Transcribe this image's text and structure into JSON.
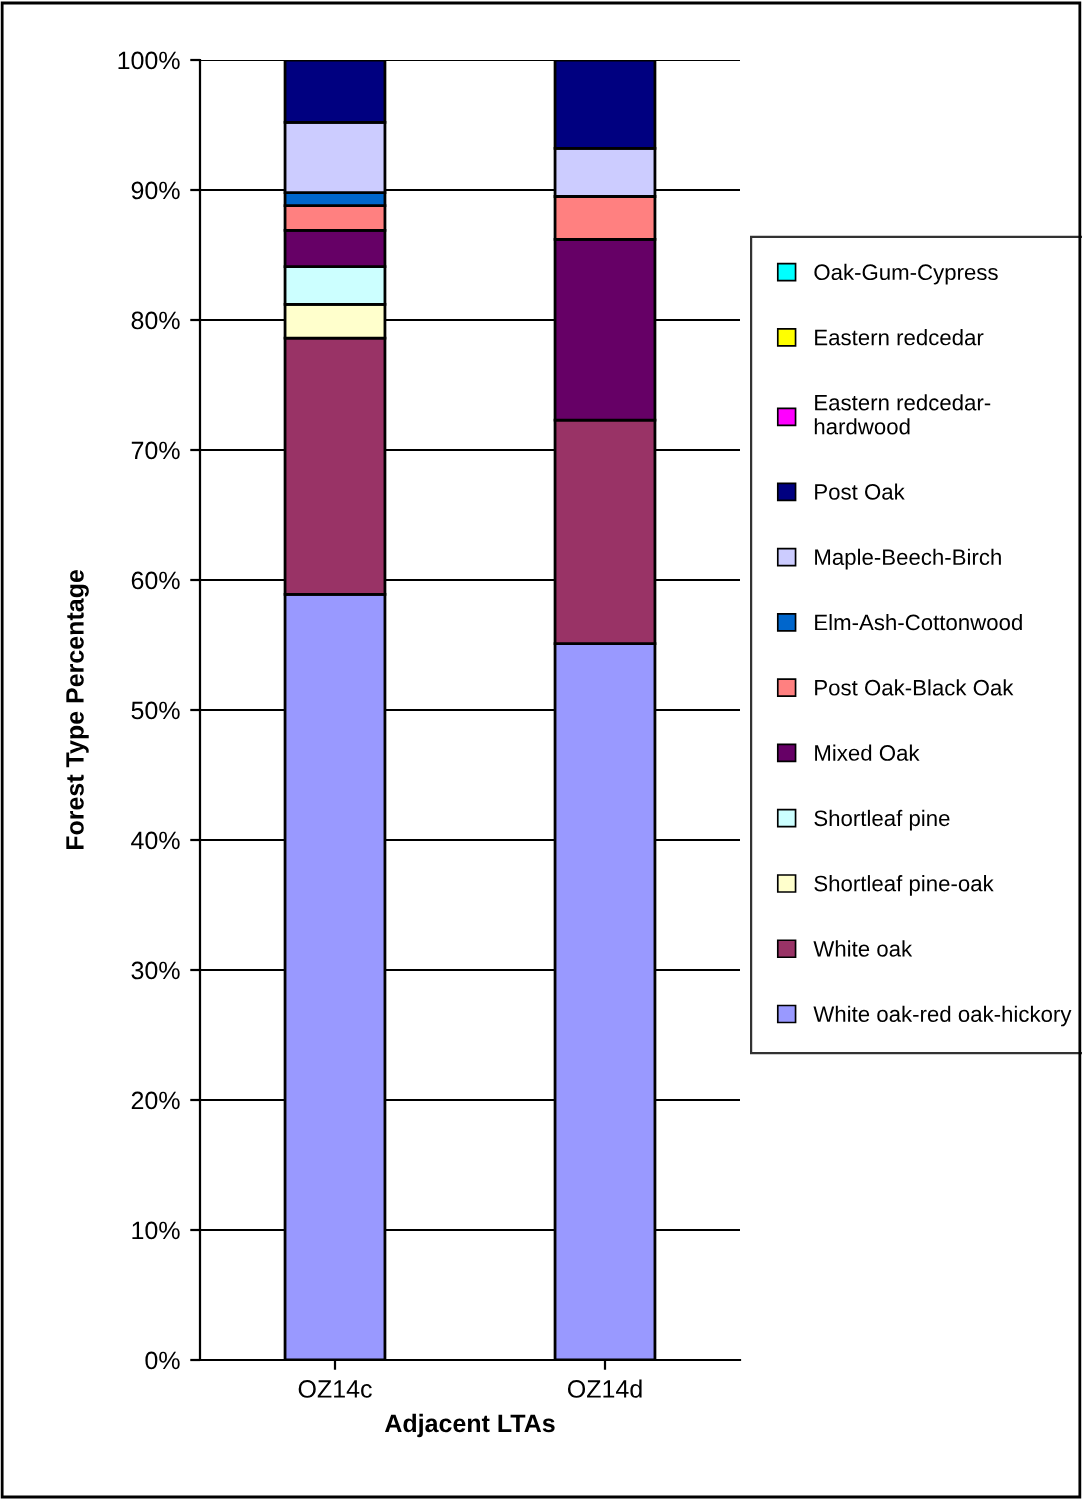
{
  "chart_data": {
    "type": "bar",
    "stacked": true,
    "xlabel": "Adjacent LTAs",
    "ylabel": "Forest Type Percentage",
    "categories": [
      "OZ14c",
      "OZ14d"
    ],
    "series": [
      {
        "name": "White oak-red oak-hickory",
        "color": "#9999ff",
        "values": [
          58.9,
          55.1
        ]
      },
      {
        "name": "White oak",
        "color": "#993366",
        "values": [
          19.7,
          17.2
        ]
      },
      {
        "name": "Shortleaf pine-oak",
        "color": "#ffffcc",
        "values": [
          2.6,
          null
        ]
      },
      {
        "name": "Shortleaf pine",
        "color": "#ccffff",
        "values": [
          2.9,
          null
        ]
      },
      {
        "name": "Mixed Oak",
        "color": "#660066",
        "values": [
          2.8,
          13.9
        ]
      },
      {
        "name": "Post Oak-Black Oak",
        "color": "#ff8080",
        "values": [
          1.9,
          3.3
        ]
      },
      {
        "name": "Elm-Ash-Cottonwood",
        "color": "#0066cc",
        "values": [
          1.0,
          null
        ]
      },
      {
        "name": "Maple-Beech-Birch",
        "color": "#ccccff",
        "values": [
          5.4,
          3.7
        ]
      },
      {
        "name": "Post Oak",
        "color": "#000080",
        "values": [
          4.8,
          6.8
        ]
      },
      {
        "name": "Eastern redcedar-\nhardwood",
        "color": "#ff00ff",
        "values": [
          null,
          null
        ]
      },
      {
        "name": "Eastern redcedar",
        "color": "#ffff00",
        "values": [
          null,
          null
        ]
      },
      {
        "name": "Oak-Gum-Cypress",
        "color": "#00ffff",
        "values": [
          null,
          null
        ]
      }
    ],
    "ylim": [
      0,
      100
    ],
    "yticks": [
      {
        "value": 0,
        "label": "0%"
      },
      {
        "value": 10,
        "label": "10%"
      },
      {
        "value": 20,
        "label": "20%"
      },
      {
        "value": 30,
        "label": "30%"
      },
      {
        "value": 40,
        "label": "40%"
      },
      {
        "value": 50,
        "label": "50%"
      },
      {
        "value": 60,
        "label": "60%"
      },
      {
        "value": 70,
        "label": "70%"
      },
      {
        "value": 80,
        "label": "80%"
      },
      {
        "value": 90,
        "label": "90%"
      },
      {
        "value": 100,
        "label": "100%"
      }
    ],
    "grid": "y",
    "legend": "right"
  }
}
